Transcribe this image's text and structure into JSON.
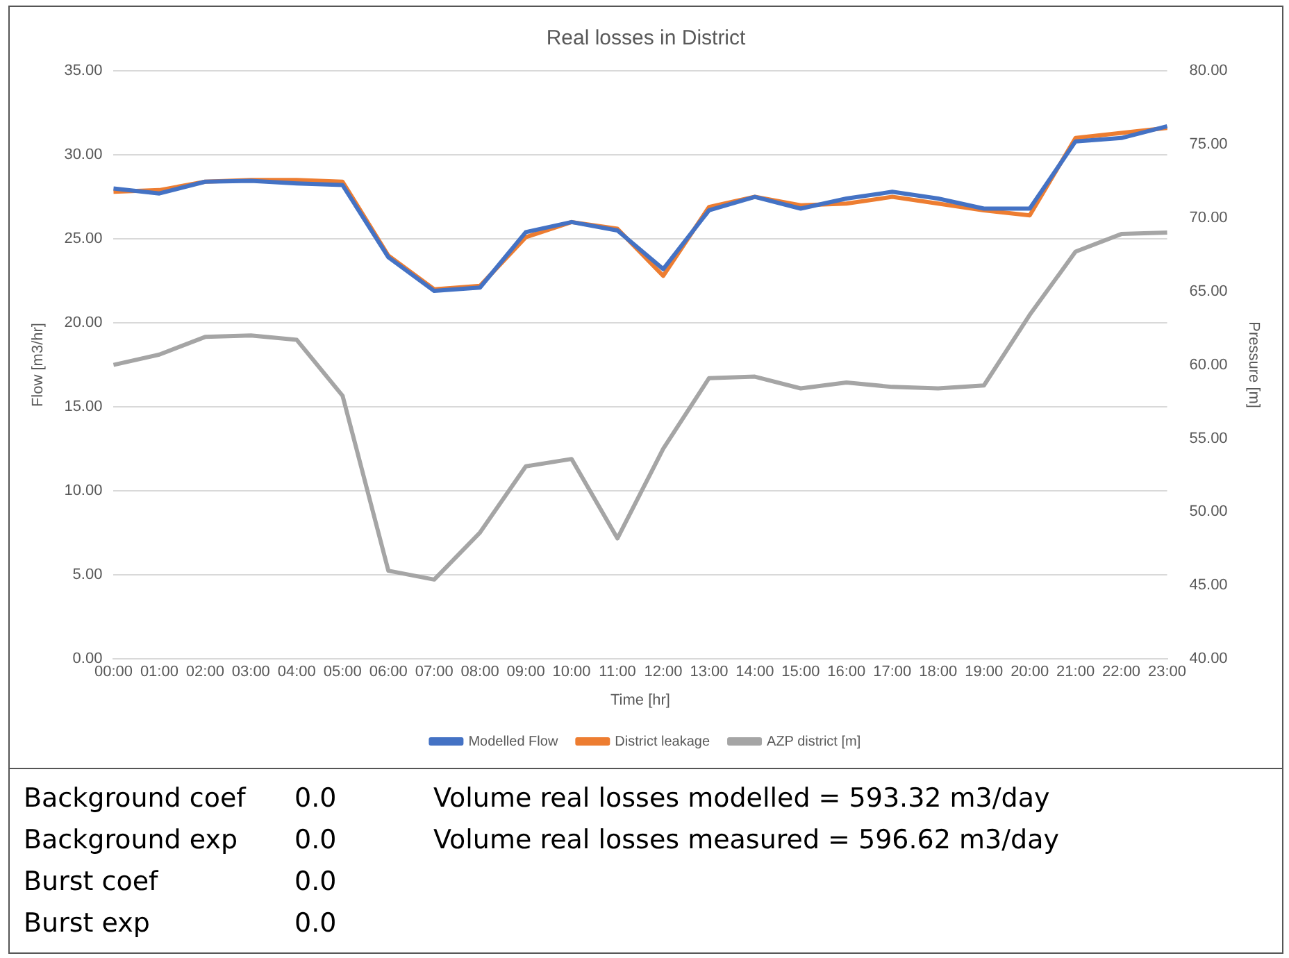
{
  "chart_data": {
    "type": "line",
    "title": "Real losses in District",
    "xlabel": "Time [hr]",
    "ylabel": "Flow [m3/hr]",
    "y2label": "Pressure [m]",
    "categories": [
      "00:00",
      "01:00",
      "02:00",
      "03:00",
      "04:00",
      "05:00",
      "06:00",
      "07:00",
      "08:00",
      "09:00",
      "10:00",
      "11:00",
      "12:00",
      "13:00",
      "14:00",
      "15:00",
      "16:00",
      "17:00",
      "18:00",
      "19:00",
      "20:00",
      "21:00",
      "22:00",
      "23:00"
    ],
    "series": [
      {
        "name": "Modelled Flow",
        "color": "#4472c4",
        "values": [
          28.0,
          27.7,
          28.4,
          28.45,
          28.3,
          28.2,
          23.9,
          21.9,
          22.1,
          25.4,
          26.0,
          25.5,
          23.2,
          26.7,
          27.5,
          26.8,
          27.4,
          27.8,
          27.4,
          26.8,
          26.8,
          30.8,
          31.0,
          31.7
        ]
      },
      {
        "name": "District leakage",
        "color": "#ed7d31",
        "values": [
          27.8,
          27.9,
          28.4,
          28.5,
          28.5,
          28.4,
          24.0,
          22.0,
          22.2,
          25.1,
          26.0,
          25.6,
          22.8,
          26.9,
          27.5,
          27.0,
          27.1,
          27.5,
          27.1,
          26.7,
          26.4,
          31.0,
          31.3,
          31.6
        ]
      },
      {
        "name": "AZP district [m]",
        "color": "#a5a5a5",
        "axis": "y2",
        "values": [
          60.0,
          60.7,
          61.9,
          62.0,
          61.7,
          57.9,
          46.0,
          45.4,
          48.6,
          53.1,
          53.6,
          48.2,
          54.3,
          59.1,
          59.2,
          58.4,
          58.8,
          58.5,
          58.4,
          58.6,
          63.4,
          67.7,
          68.9,
          69.0
        ]
      }
    ],
    "ylim": [
      0,
      35
    ],
    "yticks": [
      {
        "value": 0,
        "label": "0.00"
      },
      {
        "value": 5,
        "label": "5.00"
      },
      {
        "value": 10,
        "label": "10.00"
      },
      {
        "value": 15,
        "label": "15.00"
      },
      {
        "value": 20,
        "label": "20.00"
      },
      {
        "value": 25,
        "label": "25.00"
      },
      {
        "value": 30,
        "label": "30.00"
      },
      {
        "value": 35,
        "label": "35.00"
      }
    ],
    "y2lim": [
      40,
      80
    ],
    "y2ticks": [
      {
        "value": 40,
        "label": "40.00"
      },
      {
        "value": 45,
        "label": "45.00"
      },
      {
        "value": 50,
        "label": "50.00"
      },
      {
        "value": 55,
        "label": "55.00"
      },
      {
        "value": 60,
        "label": "60.00"
      },
      {
        "value": 65,
        "label": "65.00"
      },
      {
        "value": 70,
        "label": "70.00"
      },
      {
        "value": 75,
        "label": "75.00"
      },
      {
        "value": 80,
        "label": "80.00"
      }
    ],
    "grid": "y",
    "legend": "bottom",
    "marker": "none",
    "line_style": "solid",
    "annotations": [
      "Background coef",
      "0.0",
      "Background exp",
      "0.0",
      "Burst coef",
      "0.0",
      "Burst exp",
      "0.0",
      "Volume real losses modelled = 593.32 m3/day",
      "Volume real losses measured = 596.62 m3/day"
    ]
  }
}
